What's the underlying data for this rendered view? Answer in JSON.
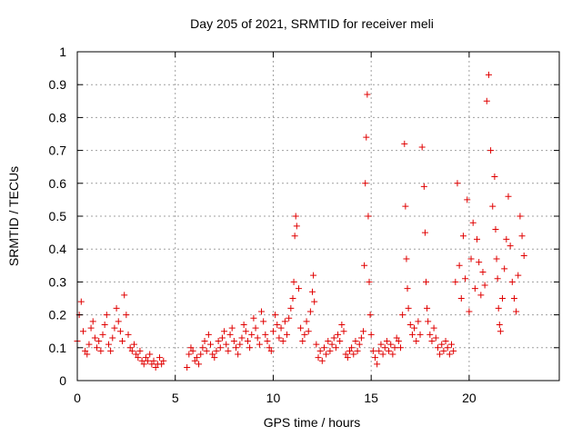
{
  "chart_data": {
    "type": "scatter",
    "title": "Day 205 of 2021, SRMTID for receiver meli",
    "xlabel": "GPS time / hours",
    "ylabel": "SRMTID / TECUs",
    "xlim": [
      0,
      24.6
    ],
    "ylim": [
      0,
      1
    ],
    "xticks": [
      0,
      5,
      10,
      15,
      20
    ],
    "xtick_labels": [
      "0",
      "5",
      "10",
      "15",
      "20"
    ],
    "yticks": [
      0,
      0.1,
      0.2,
      0.3,
      0.4,
      0.5,
      0.6,
      0.7,
      0.8,
      0.9,
      1
    ],
    "ytick_labels": [
      "0",
      "0.1",
      "0.2",
      "0.3",
      "0.4",
      "0.5",
      "0.6",
      "0.7",
      "0.8",
      "0.9",
      "1"
    ],
    "grid": true,
    "marker": "+",
    "color": "#e00000",
    "series": [
      {
        "name": "SRMTID",
        "x": [
          0.0,
          0.1,
          0.2,
          0.3,
          0.4,
          0.5,
          0.6,
          0.7,
          0.8,
          0.9,
          1.0,
          1.1,
          1.2,
          1.3,
          1.4,
          1.5,
          1.6,
          1.7,
          1.8,
          1.9,
          2.0,
          2.1,
          2.2,
          2.3,
          2.4,
          2.5,
          2.6,
          2.7,
          2.8,
          2.9,
          3.0,
          3.1,
          3.2,
          3.3,
          3.4,
          3.5,
          3.6,
          3.7,
          3.8,
          3.9,
          4.0,
          4.1,
          4.2,
          4.3,
          4.4,
          5.6,
          5.7,
          5.8,
          5.9,
          6.0,
          6.1,
          6.2,
          6.3,
          6.4,
          6.5,
          6.6,
          6.7,
          6.8,
          6.9,
          7.0,
          7.1,
          7.2,
          7.3,
          7.4,
          7.5,
          7.6,
          7.7,
          7.8,
          7.9,
          8.0,
          8.1,
          8.2,
          8.3,
          8.4,
          8.5,
          8.6,
          8.7,
          8.8,
          8.9,
          9.0,
          9.1,
          9.2,
          9.3,
          9.4,
          9.5,
          9.6,
          9.7,
          9.8,
          9.9,
          10.0,
          10.1,
          10.2,
          10.3,
          10.4,
          10.5,
          10.6,
          10.7,
          10.8,
          10.9,
          11.0,
          11.05,
          11.1,
          11.15,
          11.2,
          11.3,
          11.4,
          11.5,
          11.6,
          11.7,
          11.8,
          11.9,
          12.0,
          12.05,
          12.1,
          12.2,
          12.3,
          12.4,
          12.5,
          12.6,
          12.7,
          12.8,
          12.9,
          13.0,
          13.1,
          13.2,
          13.3,
          13.4,
          13.5,
          13.6,
          13.7,
          13.8,
          13.9,
          14.0,
          14.1,
          14.2,
          14.3,
          14.4,
          14.5,
          14.6,
          14.65,
          14.7,
          14.75,
          14.8,
          14.85,
          14.9,
          14.95,
          15.0,
          15.1,
          15.2,
          15.3,
          15.4,
          15.5,
          15.6,
          15.7,
          15.8,
          15.9,
          16.0,
          16.1,
          16.2,
          16.3,
          16.4,
          16.5,
          16.6,
          16.7,
          16.75,
          16.8,
          16.85,
          16.9,
          17.0,
          17.1,
          17.2,
          17.3,
          17.4,
          17.5,
          17.6,
          17.7,
          17.75,
          17.8,
          17.85,
          17.9,
          18.0,
          18.1,
          18.2,
          18.3,
          18.4,
          18.5,
          18.6,
          18.7,
          18.8,
          18.9,
          19.0,
          19.1,
          19.2,
          19.3,
          19.4,
          19.5,
          19.6,
          19.7,
          19.8,
          19.9,
          20.0,
          20.1,
          20.2,
          20.3,
          20.4,
          20.5,
          20.6,
          20.7,
          20.8,
          20.9,
          21.0,
          21.1,
          21.2,
          21.3,
          21.35,
          21.4,
          21.45,
          21.5,
          21.55,
          21.6,
          21.7,
          21.8,
          21.9,
          22.0,
          22.1,
          22.2,
          22.3,
          22.4,
          22.5,
          22.6,
          22.7,
          22.8
        ],
        "y": [
          0.12,
          0.2,
          0.24,
          0.15,
          0.09,
          0.08,
          0.11,
          0.16,
          0.18,
          0.13,
          0.1,
          0.12,
          0.09,
          0.14,
          0.17,
          0.2,
          0.11,
          0.09,
          0.13,
          0.16,
          0.22,
          0.18,
          0.15,
          0.12,
          0.26,
          0.2,
          0.14,
          0.1,
          0.09,
          0.11,
          0.08,
          0.07,
          0.09,
          0.06,
          0.05,
          0.07,
          0.06,
          0.08,
          0.05,
          0.06,
          0.04,
          0.05,
          0.07,
          0.05,
          0.06,
          0.04,
          0.08,
          0.1,
          0.09,
          0.06,
          0.07,
          0.05,
          0.08,
          0.1,
          0.12,
          0.09,
          0.14,
          0.11,
          0.08,
          0.07,
          0.09,
          0.12,
          0.1,
          0.13,
          0.15,
          0.11,
          0.09,
          0.14,
          0.16,
          0.12,
          0.1,
          0.08,
          0.11,
          0.13,
          0.17,
          0.15,
          0.12,
          0.1,
          0.14,
          0.19,
          0.16,
          0.13,
          0.11,
          0.21,
          0.18,
          0.14,
          0.12,
          0.1,
          0.09,
          0.15,
          0.2,
          0.17,
          0.13,
          0.16,
          0.12,
          0.18,
          0.14,
          0.19,
          0.22,
          0.25,
          0.3,
          0.44,
          0.5,
          0.47,
          0.28,
          0.16,
          0.12,
          0.14,
          0.18,
          0.15,
          0.21,
          0.27,
          0.32,
          0.24,
          0.11,
          0.07,
          0.09,
          0.06,
          0.1,
          0.08,
          0.12,
          0.09,
          0.11,
          0.13,
          0.1,
          0.14,
          0.12,
          0.17,
          0.15,
          0.08,
          0.07,
          0.09,
          0.1,
          0.08,
          0.12,
          0.09,
          0.11,
          0.13,
          0.15,
          0.35,
          0.6,
          0.74,
          0.87,
          0.5,
          0.3,
          0.2,
          0.14,
          0.09,
          0.07,
          0.05,
          0.09,
          0.11,
          0.08,
          0.1,
          0.12,
          0.09,
          0.11,
          0.08,
          0.1,
          0.13,
          0.12,
          0.1,
          0.2,
          0.72,
          0.53,
          0.37,
          0.28,
          0.22,
          0.17,
          0.14,
          0.16,
          0.12,
          0.18,
          0.14,
          0.71,
          0.59,
          0.45,
          0.3,
          0.22,
          0.18,
          0.14,
          0.12,
          0.16,
          0.13,
          0.1,
          0.08,
          0.11,
          0.09,
          0.12,
          0.1,
          0.08,
          0.11,
          0.09,
          0.3,
          0.6,
          0.35,
          0.25,
          0.44,
          0.31,
          0.55,
          0.21,
          0.37,
          0.48,
          0.28,
          0.43,
          0.36,
          0.26,
          0.33,
          0.29,
          0.85,
          0.93,
          0.7,
          0.53,
          0.62,
          0.46,
          0.37,
          0.31,
          0.22,
          0.17,
          0.15,
          0.25,
          0.34,
          0.43,
          0.56,
          0.41,
          0.3,
          0.25,
          0.21,
          0.32,
          0.5,
          0.44,
          0.38
        ]
      }
    ]
  }
}
